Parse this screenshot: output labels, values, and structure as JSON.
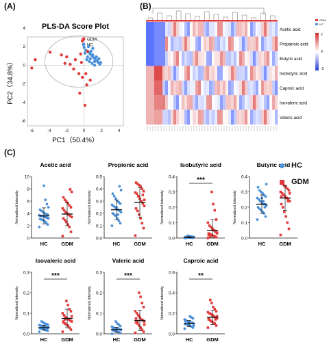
{
  "panels": {
    "a": "(A)",
    "b": "(B)",
    "c": "(C)"
  },
  "colors": {
    "hc": "#4a90d9",
    "gdm": "#e03a3a",
    "black": "#111111"
  },
  "chart_data": [
    {
      "type": "scatter",
      "panel": "A",
      "title": "PLS-DA Score Plot",
      "xlabel": "PC1（50.4%）",
      "ylabel": "PC2（34.8%）",
      "xlim": [
        -6.5,
        4.5
      ],
      "ylim": [
        -6.5,
        4.5
      ],
      "xticks": [
        "-6",
        "-4",
        "-2",
        "0",
        "2",
        "4"
      ],
      "yticks": [
        "4",
        "2",
        "0",
        "-2",
        "-4",
        "-6"
      ],
      "legend": [
        "GDM",
        "HC"
      ],
      "series": [
        {
          "name": "GDM",
          "x": [
            -6.0,
            -5.6,
            -3.9,
            -2.6,
            -2.2,
            -1.6,
            -1.2,
            -0.6,
            -0.2,
            0.3,
            -0.5,
            0.1,
            0.7,
            0.2,
            -0.3,
            -1.0,
            -0.4,
            -0.2,
            -2.0,
            0.4
          ],
          "y": [
            -0.3,
            0.6,
            1.4,
            1.1,
            0.2,
            0.1,
            -0.4,
            -0.9,
            -1.3,
            -2.1,
            -3.0,
            -4.3,
            -1.6,
            -0.9,
            0.3,
            0.6,
            1.2,
            2.6,
            0.9,
            1.5
          ]
        },
        {
          "name": "HC",
          "x": [
            0.0,
            0.2,
            0.5,
            0.7,
            0.9,
            1.1,
            1.3,
            1.5,
            1.6,
            1.8,
            0.6,
            0.9,
            1.2,
            0.4,
            0.8,
            1.0,
            1.4,
            0.3,
            0.7,
            1.2,
            1.7,
            0.5,
            1.0,
            0.1,
            1.9
          ],
          "y": [
            1.9,
            1.6,
            1.4,
            1.2,
            1.0,
            0.8,
            0.6,
            0.5,
            0.3,
            0.1,
            0.4,
            0.2,
            0.0,
            0.9,
            1.5,
            1.1,
            0.9,
            0.6,
            0.7,
            0.4,
            0.7,
            2.0,
            1.8,
            1.3,
            0.3
          ]
        }
      ]
    },
    {
      "type": "heatmap",
      "panel": "B",
      "rows": [
        "Acetic acid",
        "Propanoic acid",
        "Butyric acid",
        "Isobutyric acid",
        "Caproic acid",
        "Isovaleric acid",
        "Valeric acid"
      ],
      "legend": [
        "GDM",
        "HC"
      ],
      "colorbar_ticks": [
        "2",
        "0",
        "-2"
      ]
    },
    {
      "type": "scatter",
      "panel": "C",
      "legend": [
        "HC",
        "GDM"
      ],
      "ylabel": "Normalized intensity",
      "categories": [
        "HC",
        "GDM"
      ],
      "subplots": [
        {
          "title": "Acetic acid",
          "ylim": [
            0,
            10
          ],
          "yticks": [
            "0",
            "2",
            "4",
            "6",
            "8",
            "10"
          ],
          "sig": "",
          "HC": {
            "mean": 3.6,
            "sd": 1.3,
            "values": [
              1.8,
              2.2,
              2.5,
              2.7,
              2.9,
              3.0,
              3.1,
              3.2,
              3.3,
              3.4,
              3.5,
              3.6,
              3.6,
              3.7,
              3.8,
              3.9,
              4.0,
              4.2,
              4.4,
              4.6,
              5.0,
              5.5,
              6.2,
              8.5
            ]
          },
          "GDM": {
            "mean": 3.9,
            "sd": 1.9,
            "values": [
              0.3,
              1.0,
              1.8,
              2.2,
              2.6,
              2.9,
              3.2,
              3.4,
              3.6,
              3.8,
              4.0,
              4.2,
              4.5,
              4.8,
              5.0,
              5.3,
              5.6,
              5.9,
              6.2,
              6.6,
              7.5,
              7.9
            ]
          }
        },
        {
          "title": "Propionic acid",
          "ylim": [
            0,
            0.5
          ],
          "yticks": [
            "0.0",
            "0.1",
            "0.2",
            "0.3",
            "0.4",
            "0.5"
          ],
          "sig": "",
          "HC": {
            "mean": 0.23,
            "sd": 0.08,
            "values": [
              0.1,
              0.12,
              0.14,
              0.16,
              0.18,
              0.19,
              0.2,
              0.21,
              0.22,
              0.23,
              0.24,
              0.25,
              0.26,
              0.27,
              0.28,
              0.29,
              0.3,
              0.32,
              0.34,
              0.36,
              0.39,
              0.42,
              0.19,
              0.25
            ]
          },
          "GDM": {
            "mean": 0.29,
            "sd": 0.12,
            "values": [
              0.02,
              0.08,
              0.12,
              0.16,
              0.19,
              0.22,
              0.24,
              0.26,
              0.28,
              0.3,
              0.32,
              0.34,
              0.36,
              0.37,
              0.38,
              0.4,
              0.42,
              0.43,
              0.44,
              0.45,
              0.31,
              0.35
            ]
          }
        },
        {
          "title": "Isobutyric acid",
          "ylim": [
            0,
            0.4
          ],
          "yticks": [
            "0.0",
            "0.1",
            "0.2",
            "0.3",
            "0.4"
          ],
          "sig": "***",
          "HC": {
            "mean": 0.005,
            "sd": 0.004,
            "values": [
              0.0,
              0.001,
              0.002,
              0.003,
              0.004,
              0.005,
              0.006,
              0.007,
              0.008,
              0.01,
              0.012,
              0.015,
              0.0,
              0.002,
              0.004,
              0.006
            ]
          },
          "GDM": {
            "mean": 0.05,
            "sd": 0.07,
            "values": [
              0.0,
              0.005,
              0.01,
              0.015,
              0.02,
              0.025,
              0.03,
              0.035,
              0.04,
              0.05,
              0.06,
              0.07,
              0.08,
              0.1,
              0.12,
              0.18,
              0.22,
              0.3,
              0.01,
              0.02,
              0.03
            ]
          }
        },
        {
          "title": "Butyric acid",
          "ylim": [
            0,
            0.4
          ],
          "yticks": [
            "0.0",
            "0.1",
            "0.2",
            "0.3",
            "0.4"
          ],
          "sig": "",
          "HC": {
            "mean": 0.22,
            "sd": 0.06,
            "values": [
              0.12,
              0.14,
              0.16,
              0.17,
              0.18,
              0.19,
              0.2,
              0.21,
              0.22,
              0.22,
              0.23,
              0.24,
              0.25,
              0.26,
              0.27,
              0.28,
              0.29,
              0.3,
              0.31,
              0.33,
              0.35,
              0.2,
              0.24,
              0.26
            ]
          },
          "GDM": {
            "mean": 0.26,
            "sd": 0.08,
            "values": [
              0.02,
              0.06,
              0.1,
              0.14,
              0.17,
              0.2,
              0.22,
              0.24,
              0.25,
              0.26,
              0.27,
              0.28,
              0.29,
              0.3,
              0.31,
              0.32,
              0.33,
              0.34,
              0.35,
              0.27,
              0.29,
              0.24
            ]
          }
        },
        {
          "title": "Isovaleric acid",
          "ylim": [
            0,
            0.3
          ],
          "yticks": [
            "0.0",
            "0.1",
            "0.2",
            "0.3"
          ],
          "sig": "***",
          "HC": {
            "mean": 0.03,
            "sd": 0.012,
            "values": [
              0.01,
              0.015,
              0.018,
              0.02,
              0.022,
              0.025,
              0.027,
              0.03,
              0.032,
              0.034,
              0.036,
              0.038,
              0.04,
              0.042,
              0.045,
              0.048,
              0.05,
              0.055,
              0.06,
              0.028,
              0.033,
              0.024
            ]
          },
          "GDM": {
            "mean": 0.075,
            "sd": 0.045,
            "values": [
              0.01,
              0.02,
              0.03,
              0.04,
              0.045,
              0.05,
              0.055,
              0.06,
              0.065,
              0.07,
              0.075,
              0.08,
              0.09,
              0.1,
              0.11,
              0.12,
              0.14,
              0.16,
              0.07,
              0.06,
              0.085
            ]
          }
        },
        {
          "title": "Valeric acid",
          "ylim": [
            0,
            0.3
          ],
          "yticks": [
            "0.0",
            "0.1",
            "0.2",
            "0.3"
          ],
          "sig": "***",
          "HC": {
            "mean": 0.02,
            "sd": 0.012,
            "values": [
              0.0,
              0.005,
              0.008,
              0.01,
              0.012,
              0.015,
              0.018,
              0.02,
              0.022,
              0.024,
              0.026,
              0.028,
              0.03,
              0.034,
              0.038,
              0.045,
              0.05,
              0.06,
              0.016,
              0.021
            ]
          },
          "GDM": {
            "mean": 0.065,
            "sd": 0.05,
            "values": [
              0.005,
              0.01,
              0.02,
              0.03,
              0.04,
              0.05,
              0.055,
              0.06,
              0.065,
              0.07,
              0.08,
              0.09,
              0.1,
              0.11,
              0.13,
              0.15,
              0.18,
              0.2,
              0.06,
              0.075,
              0.045
            ]
          }
        },
        {
          "title": "Caproic acid",
          "ylim": [
            0,
            0.6
          ],
          "yticks": [
            "0.0",
            "0.2",
            "0.4",
            "0.6"
          ],
          "sig": "**",
          "HC": {
            "mean": 0.1,
            "sd": 0.03,
            "values": [
              0.05,
              0.06,
              0.07,
              0.08,
              0.085,
              0.09,
              0.095,
              0.1,
              0.105,
              0.11,
              0.115,
              0.12,
              0.13,
              0.14,
              0.15,
              0.16,
              0.17,
              0.1,
              0.09,
              0.12,
              0.08,
              0.11
            ]
          },
          "GDM": {
            "mean": 0.16,
            "sd": 0.07,
            "values": [
              0.06,
              0.08,
              0.1,
              0.11,
              0.12,
              0.13,
              0.14,
              0.15,
              0.16,
              0.17,
              0.18,
              0.19,
              0.2,
              0.21,
              0.22,
              0.24,
              0.26,
              0.3,
              0.33,
              0.15,
              0.17,
              0.14
            ]
          }
        }
      ]
    }
  ]
}
